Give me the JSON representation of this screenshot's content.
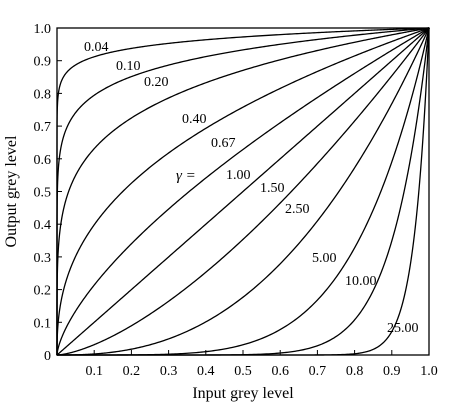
{
  "chart_data": {
    "type": "line",
    "title": "",
    "xlabel": "Input grey level",
    "ylabel": "Output grey level",
    "xlim": [
      0,
      1
    ],
    "ylim": [
      0,
      1
    ],
    "grid": false,
    "legend": "none",
    "line_color": "#000000",
    "x_ticks": [
      {
        "value": 0.1,
        "label": "0.1"
      },
      {
        "value": 0.2,
        "label": "0.2"
      },
      {
        "value": 0.3,
        "label": "0.3"
      },
      {
        "value": 0.4,
        "label": "0.4"
      },
      {
        "value": 0.5,
        "label": "0.5"
      },
      {
        "value": 0.6,
        "label": "0.6"
      },
      {
        "value": 0.7,
        "label": "0.7"
      },
      {
        "value": 0.8,
        "label": "0.8"
      },
      {
        "value": 0.9,
        "label": "0.9"
      },
      {
        "value": 1.0,
        "label": "1.0"
      }
    ],
    "y_ticks": [
      {
        "value": 0,
        "label": "0"
      },
      {
        "value": 0.1,
        "label": "0.1"
      },
      {
        "value": 0.2,
        "label": "0.2"
      },
      {
        "value": 0.3,
        "label": "0.3"
      },
      {
        "value": 0.4,
        "label": "0.4"
      },
      {
        "value": 0.5,
        "label": "0.5"
      },
      {
        "value": 0.6,
        "label": "0.6"
      },
      {
        "value": 0.7,
        "label": "0.7"
      },
      {
        "value": 0.8,
        "label": "0.8"
      },
      {
        "value": 0.9,
        "label": "0.9"
      },
      {
        "value": 1.0,
        "label": "1.0"
      }
    ],
    "gamma_symbol": "γ =",
    "series": [
      {
        "gamma": 0.04,
        "label": "0.04"
      },
      {
        "gamma": 0.1,
        "label": "0.10"
      },
      {
        "gamma": 0.2,
        "label": "0.20"
      },
      {
        "gamma": 0.4,
        "label": "0.40"
      },
      {
        "gamma": 0.67,
        "label": "0.67"
      },
      {
        "gamma": 1.0,
        "label": "1.00"
      },
      {
        "gamma": 1.5,
        "label": "1.50"
      },
      {
        "gamma": 2.5,
        "label": "2.50"
      },
      {
        "gamma": 5.0,
        "label": "5.00"
      },
      {
        "gamma": 10.0,
        "label": "10.00"
      },
      {
        "gamma": 25.0,
        "label": "25.00"
      }
    ]
  }
}
